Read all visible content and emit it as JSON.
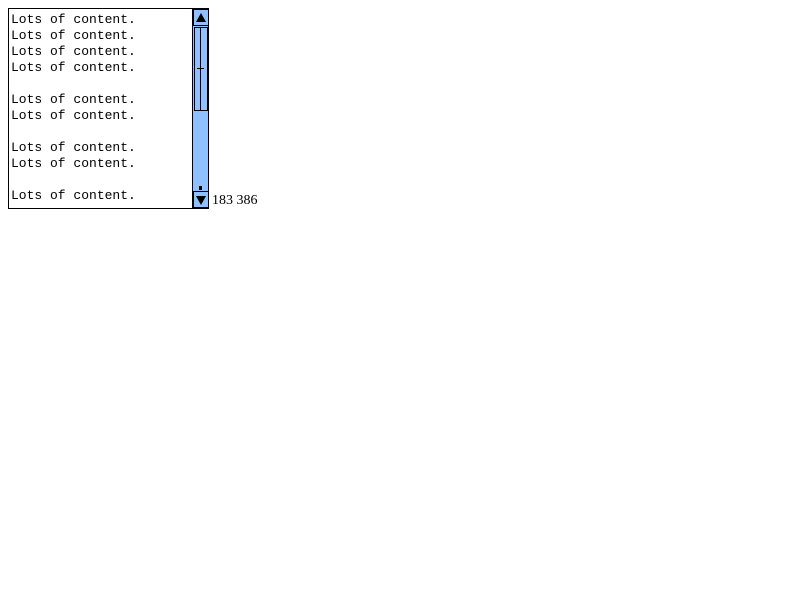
{
  "textarea": {
    "lines": [
      "Lots of content.",
      "Lots of content.",
      "Lots of content.",
      "Lots of content.",
      "",
      "Lots of content.",
      "Lots of content.",
      "",
      "Lots of content.",
      "Lots of content.",
      "",
      "Lots of content."
    ],
    "scroll_position": 0
  },
  "scrollbar": {
    "up_icon": "arrow-up-icon",
    "down_icon": "arrow-down-icon",
    "color": "#8fc0ff"
  },
  "readout": {
    "text": "183 386"
  }
}
